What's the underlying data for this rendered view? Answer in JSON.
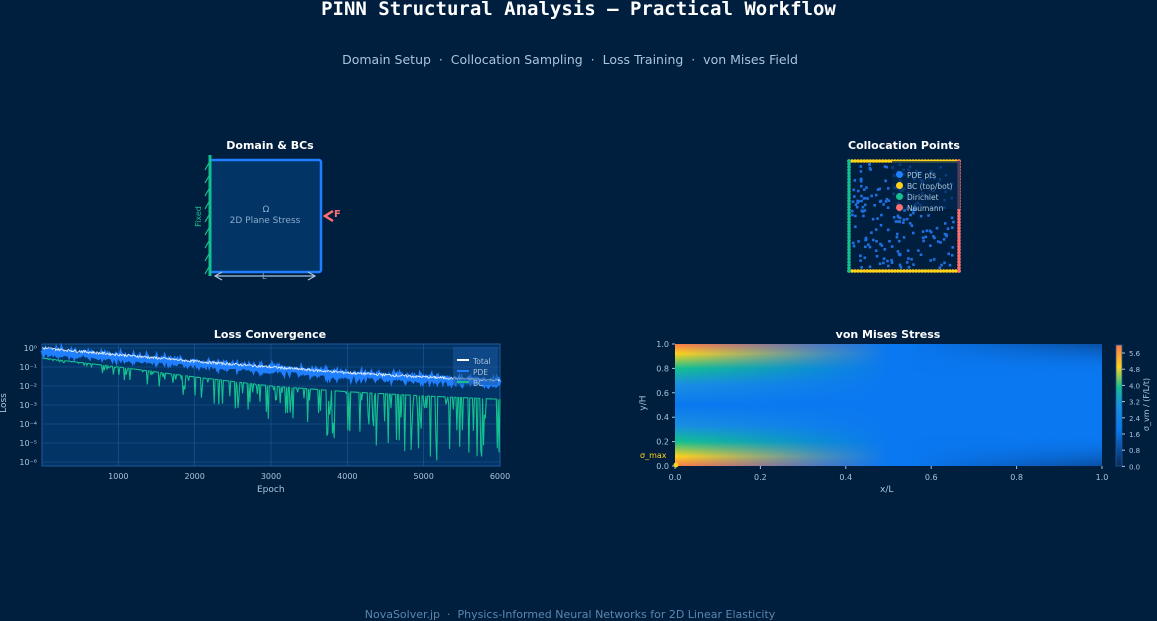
{
  "header": {
    "title": "PINN Structural Analysis — Practical Workflow",
    "subtitle": "Domain Setup  ·  Collocation Sampling  ·  Loss Training  ·  von Mises Field"
  },
  "footer": {
    "text": "NovaSolver.jp  ·  Physics-Informed Neural Networks for 2D Linear Elasticity"
  },
  "colors": {
    "background": "#001f3f",
    "panel": "#023466",
    "accent_blue": "#1f7fff",
    "teal": "#14c08f",
    "yellow": "#ffd21a",
    "coral": "#ff6f6f",
    "white": "#ffffff"
  },
  "domain_panel": {
    "title": "Domain & BCs",
    "omega_label": "Ω",
    "domain_label": "2D Plane Stress",
    "fixed_label": "Fixed",
    "force_label": "F",
    "length_label": "L"
  },
  "collocation_panel": {
    "title": "Collocation Points",
    "legend": [
      {
        "label": "PDE pts",
        "color": "#1f7fff"
      },
      {
        "label": "BC (top/bot)",
        "color": "#ffd21a"
      },
      {
        "label": "Dirichlet",
        "color": "#14c08f"
      },
      {
        "label": "Neumann",
        "color": "#ff6f6f"
      }
    ]
  },
  "chart_data": [
    {
      "type": "line",
      "title": "Loss Convergence",
      "xlabel": "Epoch",
      "ylabel": "Loss",
      "yscale": "log",
      "xlim": [
        0,
        6000
      ],
      "ylim": [
        1e-06,
        2
      ],
      "xticks": [
        "1000",
        "2000",
        "3000",
        "4000",
        "5000",
        "6000"
      ],
      "yticks": [
        "10⁰",
        "10⁻¹",
        "10⁻²",
        "10⁻³",
        "10⁻⁴",
        "10⁻⁵",
        "10⁻⁶"
      ],
      "grid": true,
      "legend_position": "upper right",
      "series": [
        {
          "name": "Total",
          "color": "#ffffff",
          "x": [
            0,
            1000,
            2000,
            3000,
            4000,
            5000,
            6000
          ],
          "values": [
            1.0,
            0.45,
            0.2,
            0.1,
            0.05,
            0.03,
            0.02
          ]
        },
        {
          "name": "PDE",
          "color": "#1f7fff",
          "x": [
            0,
            1000,
            2000,
            3000,
            4000,
            5000,
            6000
          ],
          "values": [
            0.7,
            0.35,
            0.16,
            0.08,
            0.04,
            0.025,
            0.015
          ]
        },
        {
          "name": "BC",
          "color": "#14c08f",
          "x": [
            0,
            1000,
            2000,
            3000,
            4000,
            5000,
            6000
          ],
          "values": [
            0.3,
            0.1,
            0.03,
            0.01,
            0.005,
            0.003,
            0.002
          ]
        }
      ]
    },
    {
      "type": "heatmap",
      "title": "von Mises Stress",
      "xlabel": "x/L",
      "ylabel": "y/H",
      "xlim": [
        0,
        1
      ],
      "ylim": [
        0,
        1
      ],
      "xticks": [
        "0.0",
        "0.2",
        "0.4",
        "0.6",
        "0.8",
        "1.0"
      ],
      "yticks": [
        "1.0",
        "0.8",
        "0.6",
        "0.4",
        "0.2",
        "0.0"
      ],
      "colorbar": {
        "label": "σ_vm / (F/L/t)",
        "ticks": [
          "5.6",
          "4.8",
          "4.0",
          "3.2",
          "2.4",
          "1.6",
          "0.8",
          "0.0"
        ],
        "range": [
          0,
          6
        ]
      },
      "annotation": "σ_max",
      "annotation_point": [
        0,
        0
      ]
    }
  ],
  "labels": {
    "loss_title": "Loss Convergence",
    "loss_xlabel": "Epoch",
    "loss_ylabel": "Loss",
    "vm_title": "von Mises Stress",
    "vm_xlabel": "x/L",
    "vm_ylabel": "y/H",
    "vm_cbar_label": "σ_vm / (F/L/t)",
    "sigma_max": "σ_max"
  }
}
